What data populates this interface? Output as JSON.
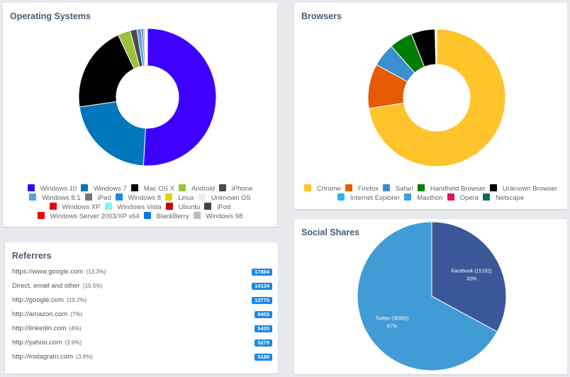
{
  "os": {
    "title": "Operating Systems",
    "legend_rows": [
      [
        0,
        1,
        2,
        3,
        4
      ],
      [
        5,
        6,
        7,
        8,
        9
      ],
      [
        10,
        11,
        12,
        13
      ],
      [
        14,
        15,
        16
      ]
    ]
  },
  "browsers": {
    "title": "Browsers",
    "legend_rows": [
      [
        0,
        1,
        2,
        3,
        4
      ],
      [
        5,
        6,
        7,
        8
      ]
    ]
  },
  "referrers": {
    "title": "Referrers",
    "items": [
      {
        "name": "https://www.google.com",
        "pct": "(13.3%)",
        "count": "17884"
      },
      {
        "name": "Direct, email and other",
        "pct": "(10.5%)",
        "count": "14134"
      },
      {
        "name": "http://google.com",
        "pct": "(10.2%)",
        "count": "13770"
      },
      {
        "name": "http://amazon.com",
        "pct": "(7%)",
        "count": "9403"
      },
      {
        "name": "http://linkedin.com",
        "pct": "(4%)",
        "count": "5435"
      },
      {
        "name": "http://yahoo.com",
        "pct": "(3.9%)",
        "count": "5279"
      },
      {
        "name": "http://instagram.com",
        "pct": "(3.9%)",
        "count": "5180"
      }
    ]
  },
  "social": {
    "title": "Social Shares"
  },
  "chart_data": [
    {
      "type": "pie",
      "variant": "donut",
      "title": "Operating Systems",
      "legend_position": "bottom",
      "categories": [
        "Windows 10",
        "Windows 7",
        "Mac OS X",
        "Android",
        "iPhone",
        "Windows 8.1",
        "iPad",
        "Windows 8",
        "Linux",
        "Unknown OS",
        "Windows XP",
        "Windows Vista",
        "Ubuntu",
        "iPod",
        "Windows Server 2003/XP x64",
        "BlackBerry",
        "Windows 98"
      ],
      "colors": [
        "#3d00ff",
        "#0077bb",
        "#000000",
        "#9ac13a",
        "#4a4a4a",
        "#4ca3ef",
        "#777777",
        "#1e88e5",
        "#e8d000",
        "#eeeeee",
        "#ee0000",
        "#7ff6f6",
        "#cc0000",
        "#444444",
        "#ee0000",
        "#0a7aea",
        "#bbbbbb"
      ],
      "values": [
        51.5,
        22.0,
        20.5,
        3.0,
        1.6,
        1.0,
        0.5,
        0.3,
        0.2,
        0.2,
        0.1,
        0.05,
        0.05,
        0.05,
        0.02,
        0.02,
        0.01
      ]
    },
    {
      "type": "pie",
      "variant": "donut",
      "title": "Browsers",
      "legend_position": "bottom",
      "categories": [
        "Chrome",
        "Firefox",
        "Safari",
        "Handheld Browser",
        "Unknown Browser",
        "Internet Explorer",
        "Maxthon",
        "Opera",
        "Netscape"
      ],
      "colors": [
        "#ffc42b",
        "#e55b00",
        "#3a8fcc",
        "#007c00",
        "#000000",
        "#29b6f6",
        "#3f9ce8",
        "#e0164e",
        "#0e6b5e"
      ],
      "values": [
        72.5,
        10.5,
        5.5,
        5.5,
        5.6,
        0.1,
        0.1,
        0.1,
        0.1
      ]
    },
    {
      "type": "pie",
      "title": "Social Shares",
      "categories": [
        "Facebook",
        "Twitter"
      ],
      "colors": [
        "#3a5898",
        "#419bd5"
      ],
      "values": [
        15182,
        30950
      ],
      "labels": [
        "Facebook (15182)",
        "Twitter (30950)"
      ],
      "percent_labels": [
        "33%",
        "67%"
      ]
    }
  ]
}
